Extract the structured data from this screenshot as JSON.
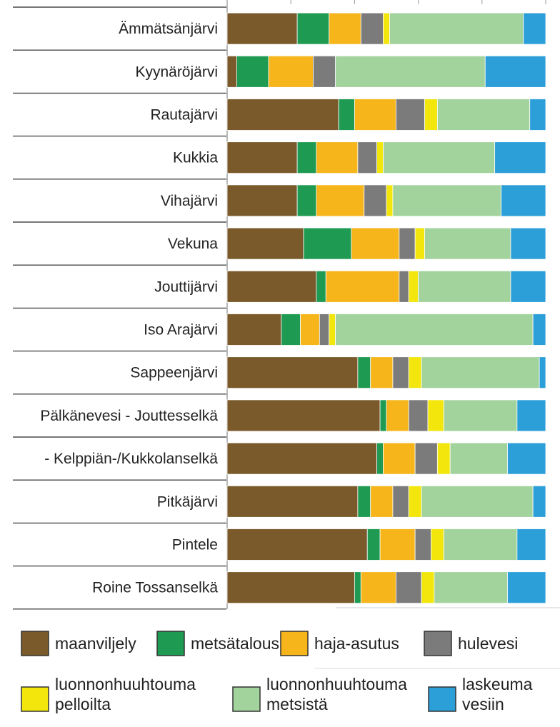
{
  "chart_data": {
    "type": "bar",
    "orientation": "horizontal",
    "stacked": true,
    "normalized": true,
    "xlim": [
      0,
      100
    ],
    "grid": false,
    "legend_position": "bottom",
    "title": "",
    "xlabel": "",
    "ylabel": "",
    "categories": [
      "Ämmätsänjärvi",
      "Kyynäröjärvi",
      "Rautajärvi",
      "Kukkia",
      "Vihajärvi",
      "Vekuna",
      "Jouttijärvi",
      "Iso Arajärvi",
      "Sappeenjärvi",
      "Pälkänevesi - Jouttesselkä",
      "- Kelppiän-/Kukkolanselkä",
      "Pitkäjärvi",
      "Pintele",
      "Roine Tossanselkä"
    ],
    "series": [
      {
        "name": "maanviljely",
        "color": "#7a5a2b",
        "values": [
          22,
          3,
          35,
          22,
          22,
          24,
          28,
          17,
          41,
          48,
          47,
          41,
          44,
          40
        ]
      },
      {
        "name": "metsätalous",
        "color": "#1f9a52",
        "values": [
          10,
          10,
          5,
          6,
          6,
          15,
          3,
          6,
          4,
          2,
          2,
          4,
          4,
          2
        ]
      },
      {
        "name": "haja-asutus",
        "color": "#f6b51b",
        "values": [
          10,
          14,
          13,
          13,
          15,
          15,
          23,
          6,
          7,
          7,
          10,
          7,
          11,
          11
        ]
      },
      {
        "name": "hulevesi",
        "color": "#7b7b7b",
        "values": [
          7,
          7,
          9,
          6,
          7,
          5,
          3,
          3,
          5,
          6,
          7,
          5,
          5,
          8
        ]
      },
      {
        "name": "luonnonhuuhtouma pelloilta",
        "color": "#f3e60c",
        "values": [
          2,
          0,
          4,
          2,
          2,
          3,
          3,
          2,
          4,
          5,
          4,
          4,
          4,
          4
        ]
      },
      {
        "name": "luonnonhuuhtouma metsistä",
        "color": "#a2d39c",
        "values": [
          42,
          47,
          29,
          35,
          34,
          27,
          29,
          62,
          37,
          23,
          18,
          35,
          23,
          23
        ]
      },
      {
        "name": "laskeuma vesiin",
        "color": "#2c9fd9",
        "values": [
          7,
          19,
          5,
          16,
          14,
          11,
          11,
          4,
          2,
          9,
          12,
          4,
          9,
          12
        ]
      }
    ]
  },
  "legend": {
    "items": [
      {
        "key": "maanviljely",
        "lines": [
          "maanviljely"
        ]
      },
      {
        "key": "metsatalous",
        "lines": [
          "metsätalous"
        ]
      },
      {
        "key": "haja-asutus",
        "lines": [
          "haja-asutus"
        ]
      },
      {
        "key": "hulevesi",
        "lines": [
          "hulevesi"
        ]
      },
      {
        "key": "luonnonhuuhtouma-pelloilta",
        "lines": [
          "luonnonhuuhtouma",
          "pelloilta"
        ]
      },
      {
        "key": "luonnonhuuhtouma-metsista",
        "lines": [
          "luonnonhuuhtouma",
          "metsistä"
        ]
      },
      {
        "key": "laskeuma-vesiin",
        "lines": [
          "laskeuma",
          "vesiin"
        ]
      }
    ]
  }
}
